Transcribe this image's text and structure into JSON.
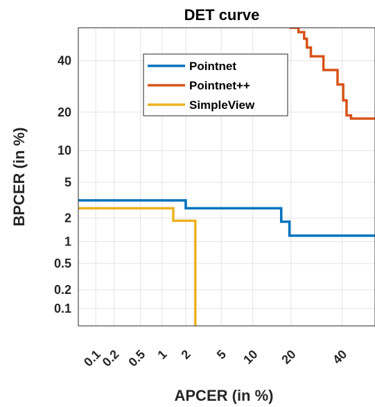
{
  "chart_data": {
    "type": "line",
    "title": "DET curve",
    "xlabel": "APCER (in %)",
    "ylabel": "BPCER (in %)",
    "xlim": [
      0.05,
      55
    ],
    "ylim": [
      0.05,
      55
    ],
    "x_scale": "probit",
    "y_scale": "probit",
    "grid": true,
    "legend_position": "top-center",
    "x_ticks": [
      0.1,
      0.2,
      0.5,
      1,
      2,
      5,
      10,
      20,
      40
    ],
    "x_tick_labels": [
      "0.1",
      "0.2",
      "0.5",
      "1",
      "2",
      "5",
      "10",
      "20",
      "40"
    ],
    "y_ticks": [
      0.1,
      0.2,
      0.5,
      1,
      2,
      5,
      10,
      20,
      40
    ],
    "y_tick_labels": [
      "0.1",
      "0.2",
      "0.5",
      "1",
      "2",
      "5",
      "10",
      "20",
      "40"
    ],
    "series": [
      {
        "name": "Pointnet",
        "color": "#0072BD",
        "points": [
          [
            0.05,
            3.2
          ],
          [
            2.0,
            3.2
          ],
          [
            2.0,
            2.6
          ],
          [
            17.0,
            2.6
          ],
          [
            17.0,
            1.8
          ],
          [
            19.5,
            1.8
          ],
          [
            19.5,
            1.2
          ],
          [
            55,
            1.2
          ]
        ]
      },
      {
        "name": "Pointnet++",
        "color": "#D95319",
        "points": [
          [
            19.5,
            55
          ],
          [
            22.5,
            55
          ],
          [
            22.5,
            53
          ],
          [
            24.5,
            53
          ],
          [
            24.5,
            50
          ],
          [
            25.5,
            50
          ],
          [
            25.5,
            46
          ],
          [
            27,
            46
          ],
          [
            27,
            42
          ],
          [
            32,
            42
          ],
          [
            32,
            36
          ],
          [
            38,
            36
          ],
          [
            38,
            30
          ],
          [
            40.5,
            30
          ],
          [
            40.5,
            24
          ],
          [
            42,
            24
          ],
          [
            42,
            19
          ],
          [
            44,
            19
          ],
          [
            44,
            18
          ],
          [
            55,
            18
          ]
        ]
      },
      {
        "name": "SimpleView",
        "color": "#EDB120",
        "points": [
          [
            0.05,
            2.6
          ],
          [
            1.4,
            2.6
          ],
          [
            1.4,
            1.85
          ],
          [
            2.6,
            1.85
          ],
          [
            2.6,
            0.05
          ]
        ]
      }
    ]
  }
}
